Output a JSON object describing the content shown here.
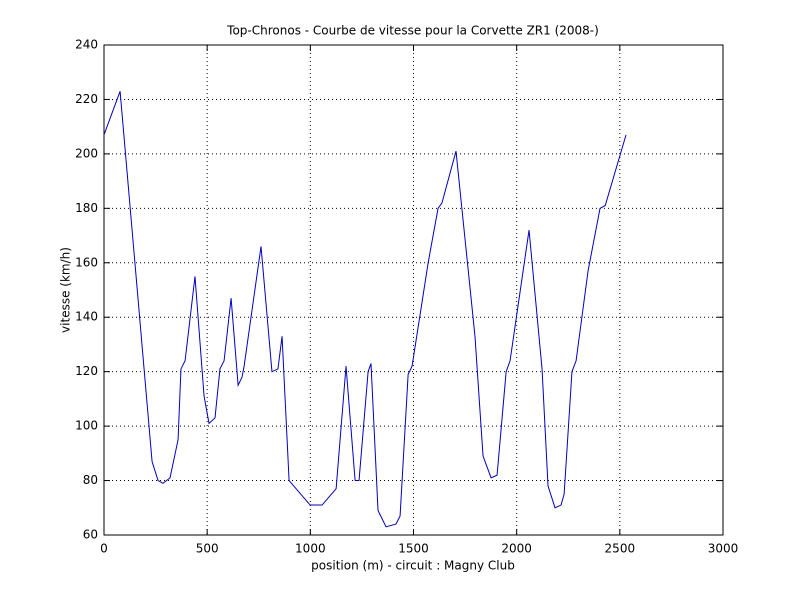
{
  "chart_data": {
    "type": "line",
    "title": "Top-Chronos - Courbe de vitesse pour la Corvette ZR1 (2008-)",
    "xlabel": "position (m) - circuit : Magny Club",
    "ylabel": "vitesse (km/h)",
    "x": [
      0,
      78,
      233,
      262,
      286,
      320,
      359,
      373,
      393,
      441,
      485,
      509,
      538,
      562,
      582,
      616,
      650,
      669,
      679,
      761,
      814,
      843,
      863,
      897,
      999,
      1057,
      1125,
      1173,
      1217,
      1236,
      1280,
      1294,
      1328,
      1367,
      1415,
      1435,
      1474,
      1493,
      1571,
      1619,
      1638,
      1706,
      1798,
      1837,
      1876,
      1905,
      1949,
      1968,
      2060,
      2123,
      2152,
      2186,
      2215,
      2230,
      2268,
      2288,
      2346,
      2404,
      2429,
      2530
    ],
    "series": [
      {
        "color": "#0000c0",
        "values": [
          207,
          223,
          87,
          80,
          79,
          81,
          95,
          121,
          124,
          155,
          111,
          101,
          103,
          121,
          124,
          147,
          115,
          118,
          122,
          166,
          120,
          121,
          133,
          80,
          71,
          71,
          77,
          122,
          80,
          80,
          120,
          123,
          69,
          63,
          64,
          67,
          119,
          122,
          160,
          180,
          182,
          201,
          133,
          89,
          81,
          82,
          120,
          124,
          172,
          121,
          78,
          70,
          71,
          75,
          120,
          124,
          157,
          180,
          181,
          207
        ]
      }
    ],
    "xlim": [
      0,
      3000
    ],
    "xticks": [
      0,
      500,
      1000,
      1500,
      2000,
      2500,
      3000
    ],
    "ylim": [
      60,
      240
    ],
    "yticks": [
      60,
      80,
      100,
      120,
      140,
      160,
      180,
      200,
      220,
      240
    ],
    "grid": true
  }
}
